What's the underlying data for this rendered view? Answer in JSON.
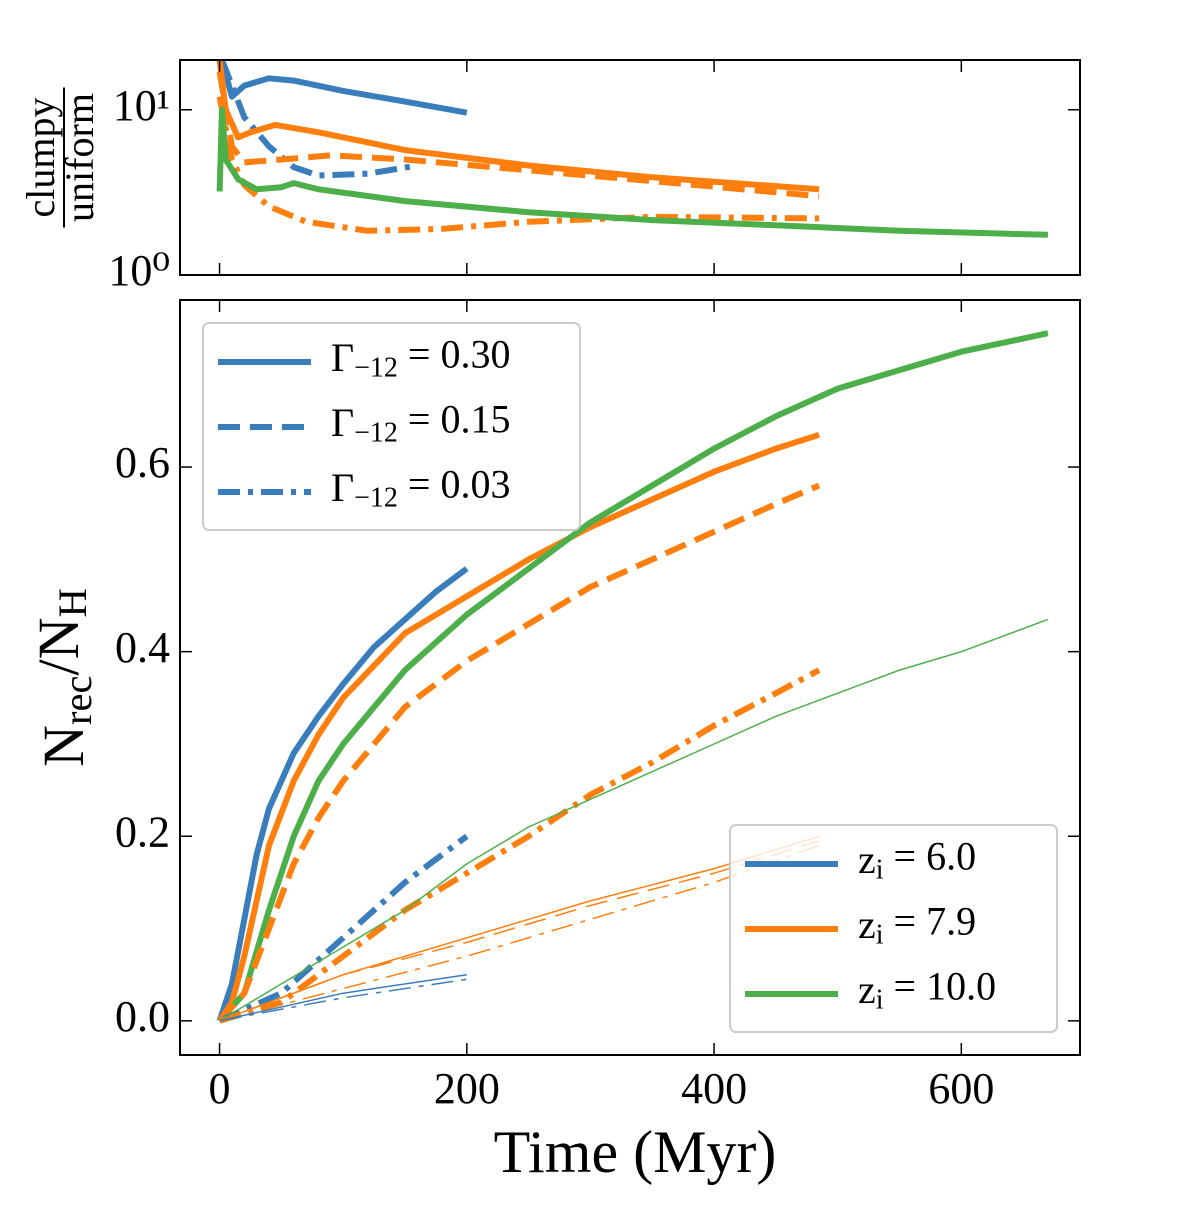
{
  "chart_data": [
    {
      "type": "line",
      "log_y": true,
      "ylabel": {
        "numerator": "clumpy",
        "denominator": "uniform"
      },
      "xlim": [
        -32,
        696
      ],
      "ylim": [
        1,
        20
      ],
      "yticks": [
        {
          "value": 1,
          "label": "10⁰"
        },
        {
          "value": 10,
          "label": "10¹"
        }
      ],
      "series": [
        {
          "color": "#3a7dbd",
          "dash": "solid",
          "width": "thick",
          "x": [
            2,
            10,
            20,
            40,
            60,
            100,
            150,
            200
          ],
          "values": [
            20,
            12,
            14,
            15.5,
            15,
            13,
            11.2,
            9.6
          ]
        },
        {
          "color": "#3a7dbd",
          "dash": "dashdot",
          "width": "thick",
          "x": [
            2,
            20,
            40,
            60,
            80,
            120,
            160
          ],
          "values": [
            20,
            9,
            6,
            4.5,
            4,
            4.1,
            4.6
          ]
        },
        {
          "color": "#ff7f0e",
          "dash": "solid",
          "width": "thick",
          "x": [
            0,
            5,
            15,
            25,
            45,
            80,
            150,
            250,
            350,
            485
          ],
          "values": [
            20,
            10,
            6.8,
            7.3,
            8.1,
            7.3,
            5.7,
            4.6,
            3.9,
            3.3
          ]
        },
        {
          "color": "#ff7f0e",
          "dash": "dashed",
          "width": "thick",
          "x": [
            0,
            10,
            20,
            50,
            90,
            150,
            250,
            350,
            485
          ],
          "values": [
            17,
            6,
            4.8,
            5,
            5.3,
            5,
            4.3,
            3.7,
            3.0
          ]
        },
        {
          "color": "#ff7f0e",
          "dash": "dashdot",
          "width": "thick",
          "x": [
            0,
            10,
            20,
            40,
            70,
            120,
            180,
            250,
            350,
            485
          ],
          "values": [
            12,
            5,
            3.5,
            2.6,
            2.1,
            1.85,
            1.9,
            2.1,
            2.25,
            2.2
          ]
        },
        {
          "color": "#4daf4a",
          "dash": "solid",
          "width": "thick",
          "x": [
            0,
            2,
            5,
            15,
            30,
            50,
            60,
            80,
            150,
            250,
            350,
            450,
            550,
            670
          ],
          "values": [
            3.2,
            10,
            5,
            3.8,
            3.3,
            3.4,
            3.6,
            3.3,
            2.8,
            2.4,
            2.15,
            2.0,
            1.85,
            1.75
          ]
        }
      ]
    },
    {
      "type": "line",
      "log_y": false,
      "ylabel": [
        "N",
        "rec",
        "/N",
        "H"
      ],
      "xlabel": "Time (Myr)",
      "xlim": [
        -32,
        696
      ],
      "ylim": [
        -0.037,
        0.781
      ],
      "xticks": [
        0,
        200,
        400,
        600
      ],
      "yticks": [
        {
          "value": 0,
          "label": "0.0"
        },
        0.2,
        0.4,
        0.6
      ],
      "series": [
        {
          "color": "#3a7dbd",
          "dash": "solid",
          "width": "thick",
          "x": [
            0,
            10,
            20,
            30,
            40,
            60,
            80,
            100,
            125,
            150,
            175,
            200
          ],
          "values": [
            0,
            0.04,
            0.11,
            0.18,
            0.23,
            0.29,
            0.33,
            0.365,
            0.405,
            0.435,
            0.465,
            0.49
          ]
        },
        {
          "color": "#ff7f0e",
          "dash": "solid",
          "width": "thick",
          "x": [
            0,
            10,
            20,
            30,
            40,
            60,
            80,
            100,
            150,
            200,
            250,
            300,
            350,
            400,
            450,
            485
          ],
          "values": [
            0,
            0.02,
            0.07,
            0.13,
            0.19,
            0.26,
            0.31,
            0.35,
            0.42,
            0.46,
            0.5,
            0.535,
            0.565,
            0.595,
            0.62,
            0.635
          ]
        },
        {
          "color": "#4daf4a",
          "dash": "solid",
          "width": "thick",
          "x": [
            0,
            20,
            40,
            60,
            80,
            100,
            150,
            200,
            250,
            300,
            350,
            400,
            450,
            500,
            550,
            600,
            670
          ],
          "values": [
            0,
            0.03,
            0.12,
            0.2,
            0.26,
            0.3,
            0.38,
            0.44,
            0.49,
            0.54,
            0.58,
            0.62,
            0.655,
            0.685,
            0.705,
            0.725,
            0.745
          ]
        },
        {
          "color": "#ff7f0e",
          "dash": "dashed",
          "width": "thick",
          "x": [
            0,
            20,
            40,
            60,
            80,
            100,
            150,
            200,
            250,
            300,
            350,
            400,
            450,
            485
          ],
          "values": [
            0,
            0.03,
            0.1,
            0.17,
            0.22,
            0.26,
            0.34,
            0.39,
            0.43,
            0.47,
            0.5,
            0.53,
            0.56,
            0.58
          ]
        },
        {
          "color": "#3a7dbd",
          "dash": "dashdot",
          "width": "thick",
          "x": [
            0,
            25,
            50,
            75,
            100,
            125,
            150,
            175,
            200
          ],
          "values": [
            0,
            0.015,
            0.03,
            0.06,
            0.09,
            0.12,
            0.15,
            0.175,
            0.2
          ]
        },
        {
          "color": "#ff7f0e",
          "dash": "dashdot",
          "width": "thick",
          "x": [
            0,
            50,
            100,
            150,
            200,
            250,
            300,
            350,
            400,
            450,
            485
          ],
          "values": [
            0,
            0.02,
            0.07,
            0.12,
            0.16,
            0.2,
            0.245,
            0.28,
            0.32,
            0.355,
            0.38
          ]
        },
        {
          "color": "#4daf4a",
          "dash": "solid",
          "width": "thin",
          "x": [
            0,
            50,
            100,
            150,
            200,
            250,
            300,
            350,
            400,
            450,
            500,
            550,
            600,
            670
          ],
          "values": [
            0,
            0.04,
            0.08,
            0.12,
            0.17,
            0.21,
            0.24,
            0.27,
            0.3,
            0.33,
            0.355,
            0.38,
            0.4,
            0.435
          ]
        },
        {
          "color": "#ff7f0e",
          "dash": "solid",
          "width": "thin",
          "x": [
            0,
            100,
            200,
            300,
            400,
            485
          ],
          "values": [
            0,
            0.05,
            0.09,
            0.13,
            0.165,
            0.2
          ]
        },
        {
          "color": "#ff7f0e",
          "dash": "dashed",
          "width": "thin",
          "x": [
            0,
            100,
            200,
            300,
            400,
            485
          ],
          "values": [
            0,
            0.05,
            0.085,
            0.125,
            0.16,
            0.195
          ]
        },
        {
          "color": "#ff7f0e",
          "dash": "dashdot",
          "width": "thin",
          "x": [
            0,
            100,
            200,
            300,
            400,
            485
          ],
          "values": [
            0,
            0.035,
            0.07,
            0.11,
            0.15,
            0.19
          ]
        },
        {
          "color": "#3a7dbd",
          "dash": "solid",
          "width": "thin",
          "x": [
            0,
            100,
            200
          ],
          "values": [
            0,
            0.03,
            0.05
          ]
        },
        {
          "color": "#3a7dbd",
          "dash": "dashdot",
          "width": "thin",
          "x": [
            0,
            100,
            200
          ],
          "values": [
            0,
            0.025,
            0.045
          ]
        }
      ],
      "legend_styles": {
        "corner": "upper left",
        "color": "#3a7dbd",
        "entries": [
          {
            "dash": "solid",
            "label": [
              "Γ",
              "−12",
              " = 0.30"
            ]
          },
          {
            "dash": "dashed",
            "label": [
              "Γ",
              "−12",
              " = 0.15"
            ]
          },
          {
            "dash": "dashdot",
            "label": [
              "Γ",
              "−12",
              " = 0.03"
            ]
          }
        ]
      },
      "legend_colors": {
        "corner": "lower right",
        "dash": "solid",
        "entries": [
          {
            "color": "#3a7dbd",
            "label": [
              "z",
              "i",
              " = 6.0"
            ]
          },
          {
            "color": "#ff7f0e",
            "label": [
              "z",
              "i",
              " = 7.9"
            ]
          },
          {
            "color": "#4daf4a",
            "label": [
              "z",
              "i",
              " = 10.0"
            ]
          }
        ]
      }
    }
  ]
}
